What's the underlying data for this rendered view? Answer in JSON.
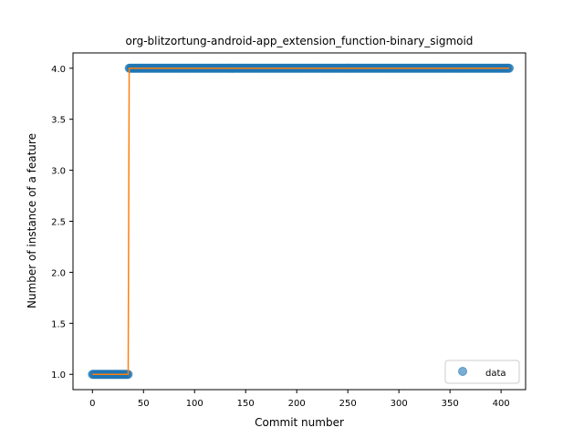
{
  "chart_data": {
    "type": "scatter",
    "title": "org-blitzortung-android-app_extension_function-binary_sigmoid",
    "xlabel": "Commit number",
    "ylabel": "Number of instance of a feature",
    "xlim": [
      -19,
      424
    ],
    "ylim": [
      0.85,
      4.15
    ],
    "xticks": [
      0,
      50,
      100,
      150,
      200,
      250,
      300,
      350,
      400
    ],
    "yticks": [
      1.0,
      1.5,
      2.0,
      2.5,
      3.0,
      3.5,
      4.0
    ],
    "ytick_labels": [
      "1.0",
      "1.5",
      "2.0",
      "2.5",
      "3.0",
      "3.5",
      "4.0"
    ],
    "grid": false,
    "legend": {
      "placement": "lower-right",
      "entries": [
        "data"
      ]
    },
    "series": [
      {
        "name": "data",
        "kind": "points",
        "segments": [
          {
            "x_start": 0,
            "x_end": 35,
            "y": 1.0
          },
          {
            "x_start": 36,
            "x_end": 408,
            "y": 4.0
          }
        ],
        "color": "#1f77b4"
      },
      {
        "kind": "line",
        "x": [
          0,
          35,
          36,
          408
        ],
        "y": [
          1.0,
          1.0,
          4.0,
          4.0
        ],
        "color": "#ff7f0e"
      }
    ]
  }
}
